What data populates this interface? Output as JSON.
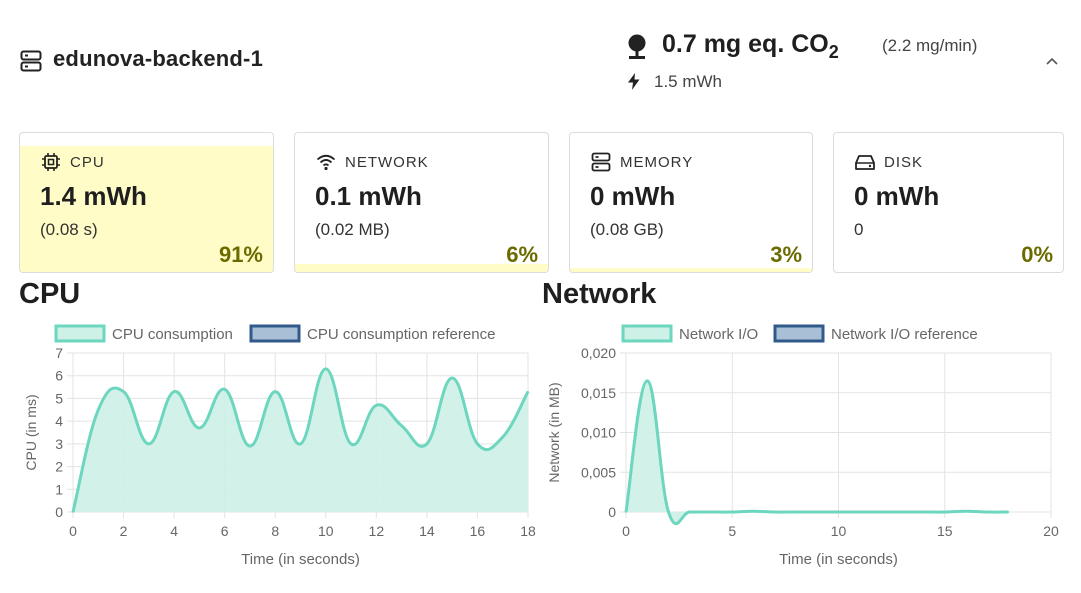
{
  "header": {
    "server_name": "edunova-backend-1",
    "co2_value": "0.7 mg eq. CO",
    "co2_subscript": "2",
    "co2_rate": "(2.2 mg/min)",
    "energy": "1.5 mWh",
    "icons": [
      "server-icon",
      "location-pin-icon",
      "bolt-icon",
      "chevron-up-icon"
    ]
  },
  "cards": [
    {
      "title": "CPU",
      "value": "1.4 mWh",
      "sub": "(0.08 s)",
      "percent": "91%",
      "share": 0.91,
      "icon": "cpu-chip-icon"
    },
    {
      "title": "NETWORK",
      "value": "0.1 mWh",
      "sub": "(0.02 MB)",
      "percent": "6%",
      "share": 0.06,
      "icon": "wifi-icon"
    },
    {
      "title": "MEMORY",
      "value": "0 mWh",
      "sub": "(0.08 GB)",
      "percent": "3%",
      "share": 0.03,
      "icon": "memory-icon"
    },
    {
      "title": "DISK",
      "value": "0 mWh",
      "sub": "0",
      "percent": "0%",
      "share": 0.0,
      "icon": "disk-icon"
    }
  ],
  "colors": {
    "card_fill": "#fffcc8",
    "percent_text": "#6b6b00",
    "series_line": "#6cd6be",
    "series_fill": "#cdf0e7",
    "reference_fill": "#a9bfd6",
    "reference_border": "#2f5a8a"
  },
  "chart_data": [
    {
      "type": "area",
      "title": "CPU",
      "legend": [
        "CPU consumption",
        "CPU consumption reference"
      ],
      "xlabel": "Time (in seconds)",
      "ylabel": "CPU (in ms)",
      "xlim": [
        0,
        18
      ],
      "ylim": [
        0,
        7
      ],
      "x_ticks": [
        "0",
        "2",
        "4",
        "6",
        "8",
        "10",
        "12",
        "14",
        "16",
        "18"
      ],
      "y_ticks": [
        "0",
        "1",
        "2",
        "3",
        "4",
        "5",
        "6",
        "7"
      ],
      "grid": true,
      "legend_position": "top",
      "series": [
        {
          "name": "CPU consumption",
          "x": [
            0,
            1,
            2,
            3,
            4,
            5,
            6,
            7,
            8,
            9,
            10,
            11,
            12,
            13,
            14,
            15,
            16,
            17,
            18
          ],
          "values": [
            0,
            4.5,
            5.3,
            3.0,
            5.3,
            3.7,
            5.4,
            2.9,
            5.3,
            3.0,
            6.3,
            3.0,
            4.7,
            3.8,
            3.0,
            5.9,
            3.0,
            3.3,
            5.3
          ]
        }
      ]
    },
    {
      "type": "area",
      "title": "Network",
      "legend": [
        "Network I/O",
        "Network I/O reference"
      ],
      "xlabel": "Time (in seconds)",
      "ylabel": "Network (in MB)",
      "xlim": [
        0,
        20
      ],
      "ylim": [
        0,
        0.02
      ],
      "x_ticks": [
        "0",
        "5",
        "10",
        "15",
        "20"
      ],
      "y_ticks": [
        "0",
        "0,005",
        "0,010",
        "0,015",
        "0,020"
      ],
      "grid": true,
      "legend_position": "top",
      "series": [
        {
          "name": "Network I/O",
          "x": [
            0,
            1,
            2,
            3,
            4,
            5,
            6,
            7,
            8,
            9,
            10,
            11,
            12,
            13,
            14,
            15,
            16,
            17,
            18
          ],
          "values": [
            0,
            0.0165,
            0,
            0,
            0,
            0,
            0.0001,
            0,
            0,
            0,
            0,
            0,
            0,
            0,
            0,
            0,
            0.0001,
            0,
            0
          ]
        }
      ]
    }
  ]
}
